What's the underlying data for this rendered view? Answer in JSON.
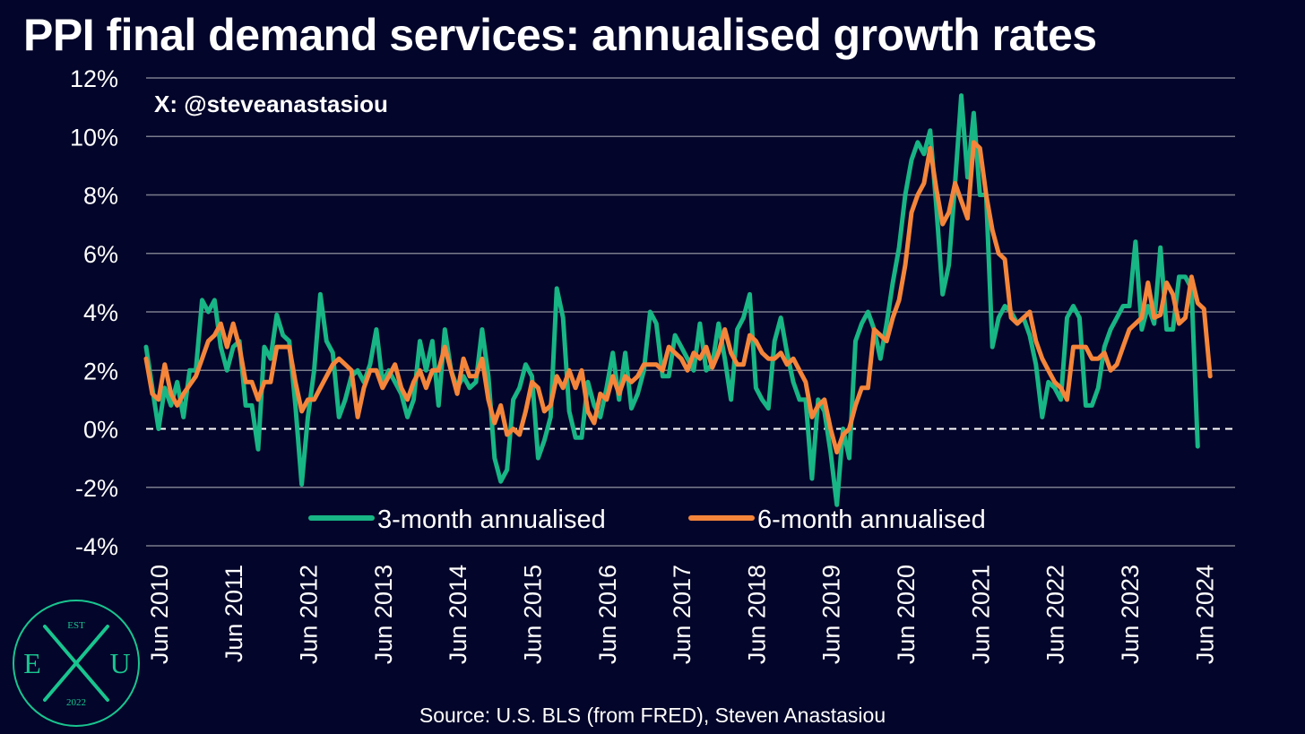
{
  "title": "PPI final demand services: annualised growth rates",
  "handle": "X: @steveanastasiou",
  "source": "Source: U.S. BLS (from FRED), Steven Anastasiou",
  "logo": {
    "top_text": "EST",
    "left_letter": "E",
    "right_letter": "U",
    "year": "2022",
    "color": "#19c58f"
  },
  "colors": {
    "background": "#03052a",
    "series_3m": "#18b585",
    "series_6m": "#f4853a",
    "grid": "#7a7c8c"
  },
  "chart_data": {
    "type": "line",
    "title": "PPI final demand services: annualised growth rates",
    "ylim": [
      -4,
      12
    ],
    "yticks": [
      -4,
      -2,
      0,
      2,
      4,
      6,
      8,
      10,
      12
    ],
    "ytick_labels": [
      "-4%",
      "-2%",
      "0%",
      "2%",
      "4%",
      "6%",
      "8%",
      "10%",
      "12%"
    ],
    "x_start": "2010-04",
    "x_end": "2024-11",
    "xticks": [
      "Jun 2010",
      "Jun 2011",
      "Jun 2012",
      "Jun 2013",
      "Jun 2014",
      "Jun 2015",
      "Jun 2016",
      "Jun 2017",
      "Jun 2018",
      "Jun 2019",
      "Jun 2020",
      "Jun 2021",
      "Jun 2022",
      "Jun 2023",
      "Jun 2024"
    ],
    "zero_line": "dashed",
    "grid": true,
    "legend": "bottom-center",
    "series": [
      {
        "name": "3-month annualised",
        "key": "series_3m",
        "values": [
          2.8,
          1.4,
          0.0,
          1.4,
          0.8,
          1.6,
          0.4,
          2.0,
          2.0,
          4.4,
          4.0,
          4.4,
          2.8,
          2.0,
          2.8,
          3.0,
          0.8,
          0.8,
          -0.7,
          2.8,
          2.4,
          3.9,
          3.2,
          3.0,
          0.8,
          -1.9,
          0.4,
          2.0,
          4.6,
          3.0,
          2.6,
          0.4,
          1.0,
          1.8,
          2.0,
          1.6,
          2.2,
          3.4,
          1.6,
          2.0,
          1.6,
          1.2,
          0.4,
          1.0,
          3.0,
          2.0,
          3.0,
          0.8,
          3.4,
          2.0,
          1.4,
          1.8,
          1.4,
          1.6,
          3.4,
          1.8,
          -1.0,
          -1.8,
          -1.4,
          1.0,
          1.4,
          2.2,
          1.8,
          -1.0,
          -0.4,
          0.4,
          4.8,
          3.8,
          0.6,
          -0.3,
          -0.3,
          1.6,
          0.8,
          0.4,
          1.4,
          2.6,
          1.0,
          2.6,
          0.7,
          1.2,
          2.0,
          4.0,
          3.6,
          1.8,
          1.8,
          3.2,
          2.8,
          2.4,
          2.0,
          3.6,
          2.0,
          2.2,
          3.6,
          2.4,
          1.0,
          3.4,
          3.8,
          4.6,
          1.4,
          1.0,
          0.7,
          3.0,
          3.8,
          2.6,
          1.6,
          1.0,
          1.0,
          -1.7,
          1.0,
          0.6,
          -0.8,
          -2.6,
          0.0,
          -1.0,
          3.0,
          3.6,
          4.0,
          3.4,
          2.4,
          3.6,
          5.0,
          6.2,
          8.0,
          9.2,
          9.8,
          9.4,
          10.2,
          7.6,
          4.6,
          5.6,
          8.4,
          11.4,
          8.6,
          10.8,
          8.0,
          8.0,
          2.8,
          3.8,
          4.2,
          4.0,
          3.6,
          3.8,
          3.2,
          2.2,
          0.4,
          1.6,
          1.4,
          1.0,
          3.8,
          4.2,
          3.8,
          0.8,
          0.8,
          1.4,
          2.8,
          3.4,
          3.8,
          4.2,
          4.2,
          6.4,
          3.4,
          4.2,
          3.6,
          6.2,
          3.4,
          3.4,
          5.2,
          5.2,
          4.8,
          -0.6
        ]
      },
      {
        "name": "6-month annualised",
        "key": "series_6m",
        "values": [
          2.4,
          1.2,
          1.0,
          2.2,
          1.2,
          0.8,
          1.2,
          1.5,
          1.8,
          2.4,
          3.0,
          3.2,
          3.6,
          2.8,
          3.6,
          2.8,
          1.6,
          1.6,
          1.0,
          1.6,
          1.6,
          2.8,
          2.8,
          2.8,
          1.6,
          0.6,
          1.0,
          1.0,
          1.4,
          1.8,
          2.2,
          2.4,
          2.2,
          2.0,
          0.4,
          1.4,
          2.0,
          2.0,
          1.4,
          1.8,
          2.2,
          1.4,
          1.0,
          1.6,
          2.0,
          1.4,
          2.0,
          2.0,
          2.8,
          2.0,
          1.2,
          2.4,
          1.8,
          1.8,
          2.4,
          1.0,
          0.2,
          0.8,
          -0.2,
          0.0,
          -0.2,
          0.6,
          1.6,
          1.4,
          0.6,
          0.8,
          1.8,
          1.4,
          2.0,
          1.4,
          2.0,
          0.6,
          0.2,
          1.2,
          1.0,
          1.8,
          1.2,
          1.8,
          1.6,
          1.8,
          2.2,
          2.2,
          2.2,
          2.0,
          2.8,
          2.6,
          2.4,
          2.0,
          2.6,
          2.4,
          2.8,
          2.1,
          2.6,
          3.4,
          2.6,
          2.2,
          2.2,
          3.2,
          3.0,
          2.6,
          2.4,
          2.4,
          2.6,
          2.2,
          2.4,
          2.0,
          1.6,
          0.4,
          0.8,
          1.0,
          0.0,
          -0.8,
          -0.2,
          0.0,
          0.8,
          1.4,
          1.4,
          3.4,
          3.2,
          3.0,
          3.8,
          4.4,
          5.6,
          7.4,
          8.0,
          8.4,
          9.6,
          8.2,
          7.0,
          7.4,
          8.4,
          7.8,
          7.2,
          9.8,
          9.6,
          8.0,
          6.8,
          6.0,
          5.8,
          3.8,
          3.6,
          3.8,
          4.0,
          3.0,
          2.4,
          2.0,
          1.6,
          1.4,
          1.0,
          2.8,
          2.8,
          2.8,
          2.4,
          2.4,
          2.6,
          2.0,
          2.2,
          2.8,
          3.4,
          3.6,
          3.8,
          5.0,
          3.8,
          3.9,
          5.0,
          4.6,
          3.6,
          3.8,
          5.2,
          4.3,
          4.1,
          1.8
        ]
      }
    ]
  }
}
